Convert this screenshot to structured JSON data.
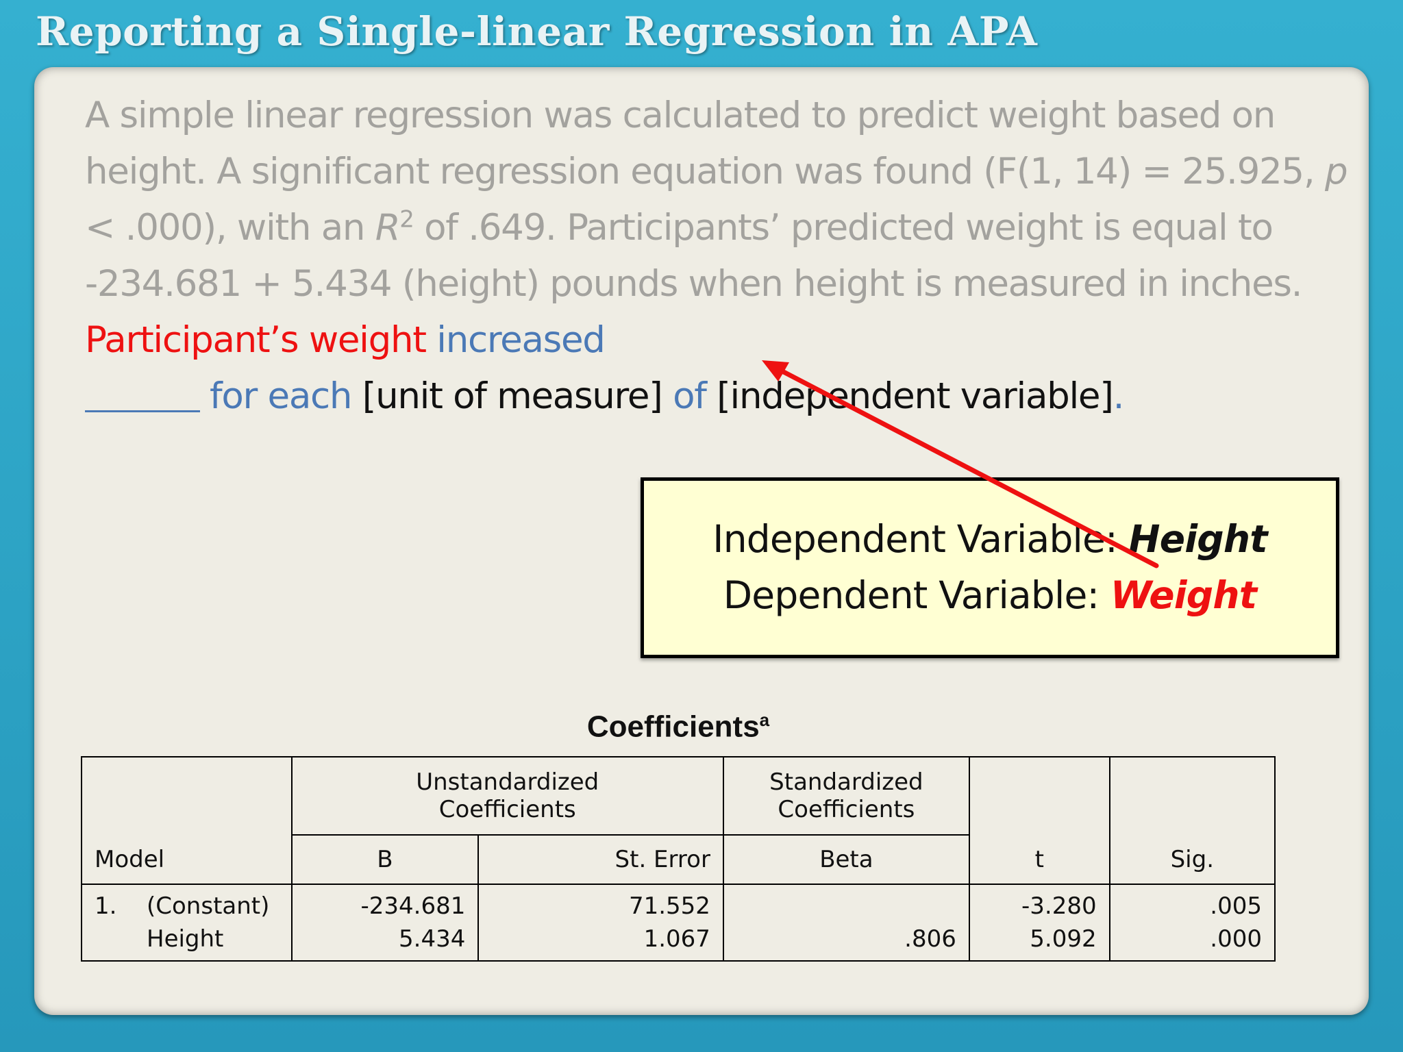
{
  "slide": {
    "title": "Reporting a Single-linear Regression in APA"
  },
  "paragraph": {
    "part1": "A simple linear regression was calculated to predict weight based on height. A significant regression equation was found (F(1, 14) = 25.925, ",
    "p_symbol": "p",
    "part2": " < .000), with an ",
    "r_symbol": "R",
    "r_exp": "2",
    "part3": " of .649. Participants’ predicted weight is equal to -234.681 + 5.434 (height) pounds when height is measured in inches. ",
    "red_phrase": "Participant’s weight",
    "blue_increased": " increased",
    "blue_for_each": "for each",
    "black_unit": " [unit of measure] ",
    "blue_of": "of",
    "black_iv": " [independent variable]",
    "blue_period": "."
  },
  "variables_box": {
    "independent_label": "Independent Variable: ",
    "independent_value": "Height",
    "dependent_label": "Dependent Variable: ",
    "dependent_value": "Weight"
  },
  "coefficients": {
    "title": "Coefficients",
    "title_sup": "a",
    "header_unstandardized": "Unstandardized Coefficients",
    "header_standardized": "Standardized Coefficients",
    "col_model": "Model",
    "col_b": "B",
    "col_se": "St. Error",
    "col_beta": "Beta",
    "col_t": "t",
    "col_sig": "Sig.",
    "model_number": "1.",
    "rows": [
      {
        "label": "(Constant)",
        "b": "-234.681",
        "se": "71.552",
        "beta": "",
        "t": "-3.280",
        "sig": ".005"
      },
      {
        "label": "Height",
        "b": "5.434",
        "se": "1.067",
        "beta": ".806",
        "t": "5.092",
        "sig": ".000"
      }
    ]
  },
  "colors": {
    "accent_red": "#ee1111",
    "accent_blue": "#4b79b6",
    "frame_teal": "#2aa3c4",
    "callout_yellow": "#ffffd3"
  }
}
